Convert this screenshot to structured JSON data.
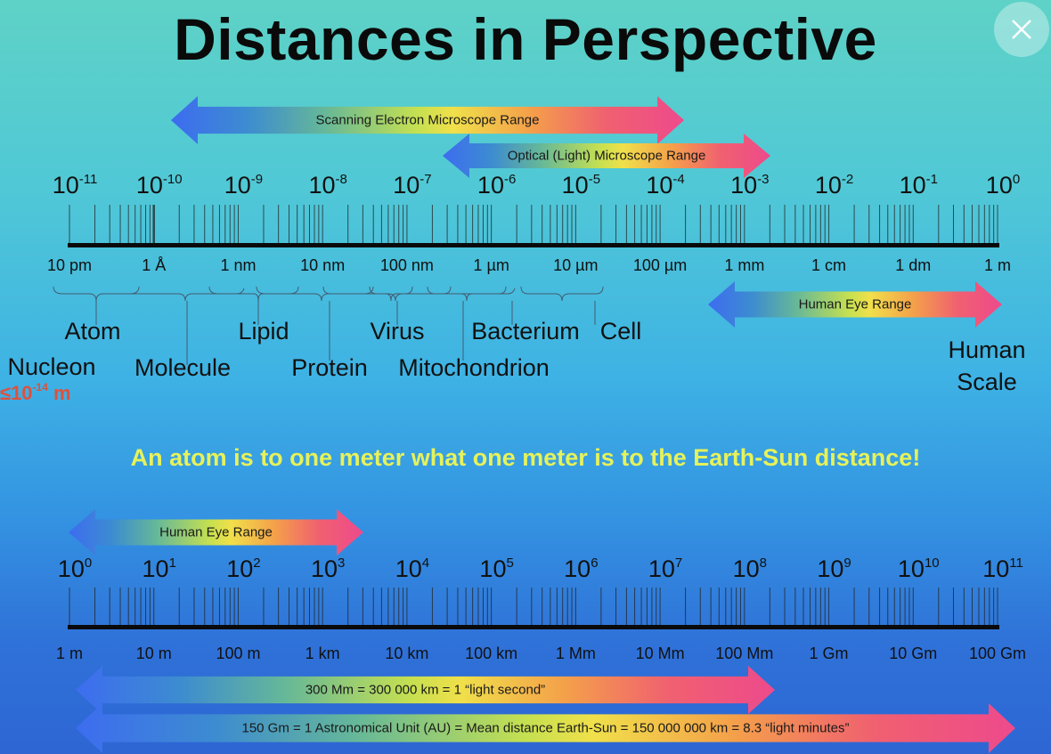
{
  "title": "Distances in Perspective",
  "close_button": {
    "icon": "close-icon"
  },
  "arrows": {
    "sem": "Scanning Electron Microscope Range",
    "optical": "Optical (Light) Microscope Range",
    "human_eye_top": "Human Eye Range",
    "human_eye_bottom": "Human Eye Range",
    "light_second": "300 Mm = 300 000 km = 1 “light second”",
    "au": "150 Gm = 1 Astronomical Unit (AU) = Mean distance Earth-Sun = 150 000 000 km = 8.3 “light minutes”"
  },
  "top_scale": {
    "base": "10",
    "exponents": [
      "-11",
      "-10",
      "-9",
      "-8",
      "-7",
      "-6",
      "-5",
      "-4",
      "-3",
      "-2",
      "-1",
      "0"
    ],
    "units": [
      "10 pm",
      "1 Å",
      "1 nm",
      "10 nm",
      "100 nm",
      "1 µm",
      "10 µm",
      "100 µm",
      "1 mm",
      "1 cm",
      "1 dm",
      "1 m"
    ]
  },
  "objects": {
    "atom": "Atom",
    "lipid": "Lipid",
    "virus": "Virus",
    "bacterium": "Bacterium",
    "cell": "Cell",
    "nucleon": "Nucleon",
    "molecule": "Molecule",
    "protein": "Protein",
    "mitochondrion": "Mitochondrion",
    "nucleon_size_prefix": "≤10",
    "nucleon_size_exp": "-14",
    "nucleon_size_unit": " m",
    "human_scale_1": "Human",
    "human_scale_2": "Scale"
  },
  "sentence": "An atom is to one meter what one meter is to the Earth-Sun distance!",
  "bottom_scale": {
    "base": "10",
    "exponents": [
      "0",
      "1",
      "2",
      "3",
      "4",
      "5",
      "6",
      "7",
      "8",
      "9",
      "10",
      "11"
    ],
    "units": [
      "1 m",
      "10 m",
      "100 m",
      "1 km",
      "10 km",
      "100 km",
      "1 Mm",
      "10 Mm",
      "100 Mm",
      "1 Gm",
      "10 Gm",
      "100 Gm"
    ]
  }
}
